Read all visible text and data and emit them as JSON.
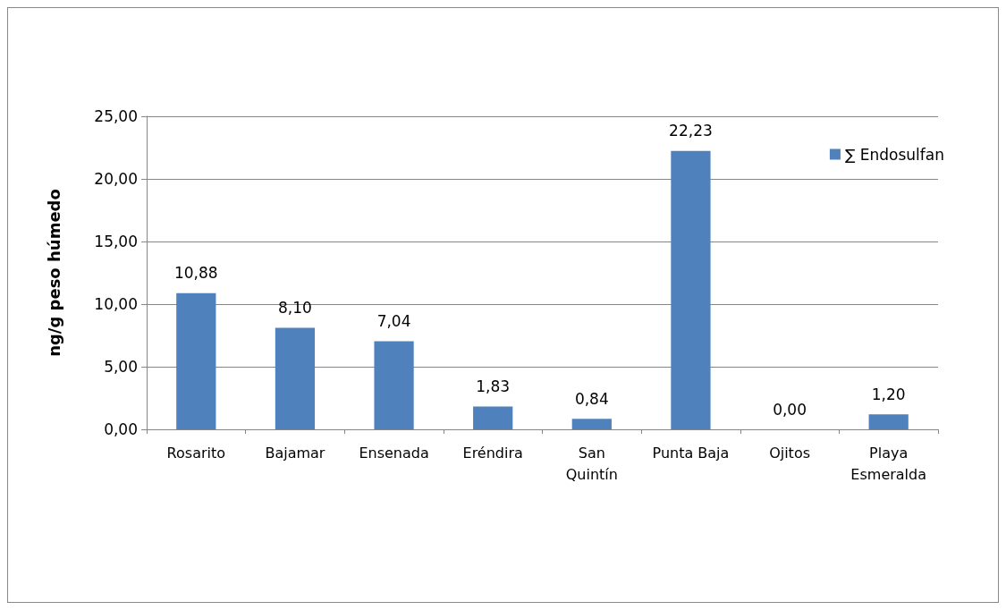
{
  "chart_data": {
    "type": "bar",
    "ylabel": "ng/g peso húmedo",
    "categories": [
      "Rosarito",
      "Bajamar",
      "Ensenada",
      "Eréndira",
      "San\nQuintín",
      "Punta Baja",
      "Ojitos",
      "Playa\nEsmeralda"
    ],
    "series": [
      {
        "name": "∑ Endosulfan",
        "color": "#4f81bd",
        "values": [
          10.88,
          8.1,
          7.04,
          1.83,
          0.84,
          22.23,
          0.0,
          1.2
        ],
        "value_labels": [
          "10,88",
          "8,10",
          "7,04",
          "1,83",
          "0,84",
          "22,23",
          "0,00",
          "1,20"
        ]
      }
    ],
    "ylim": [
      0,
      25
    ],
    "yticks": [
      {
        "value": 0,
        "label": "0,00"
      },
      {
        "value": 5,
        "label": "5,00"
      },
      {
        "value": 10,
        "label": "10,00"
      },
      {
        "value": 15,
        "label": "15,00"
      },
      {
        "value": 20,
        "label": "20,00"
      },
      {
        "value": 25,
        "label": "25,00"
      }
    ],
    "grid": "y",
    "legend": "top right"
  }
}
